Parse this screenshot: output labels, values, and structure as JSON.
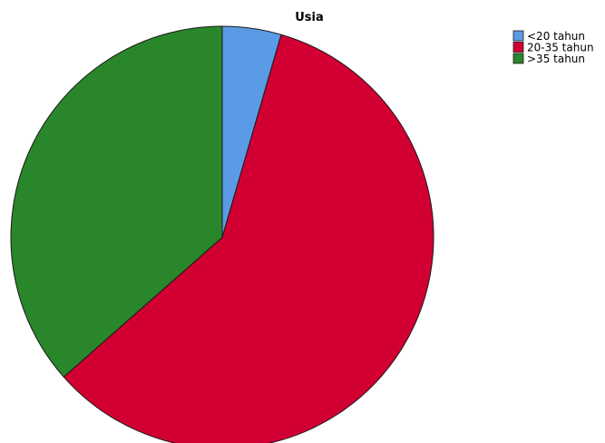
{
  "chart_data": {
    "type": "pie",
    "title": "Usia",
    "start_angle_deg": 0,
    "direction": "clockwise",
    "legend_position": "top-right",
    "slices": [
      {
        "label": "<20 tahun",
        "value": 4.5,
        "color": "#5b9be6"
      },
      {
        "label": "20-35 tahun",
        "value": 59.0,
        "color": "#d20032"
      },
      {
        "label": ">35 tahun",
        "value": 36.5,
        "color": "#2a862a"
      }
    ]
  }
}
